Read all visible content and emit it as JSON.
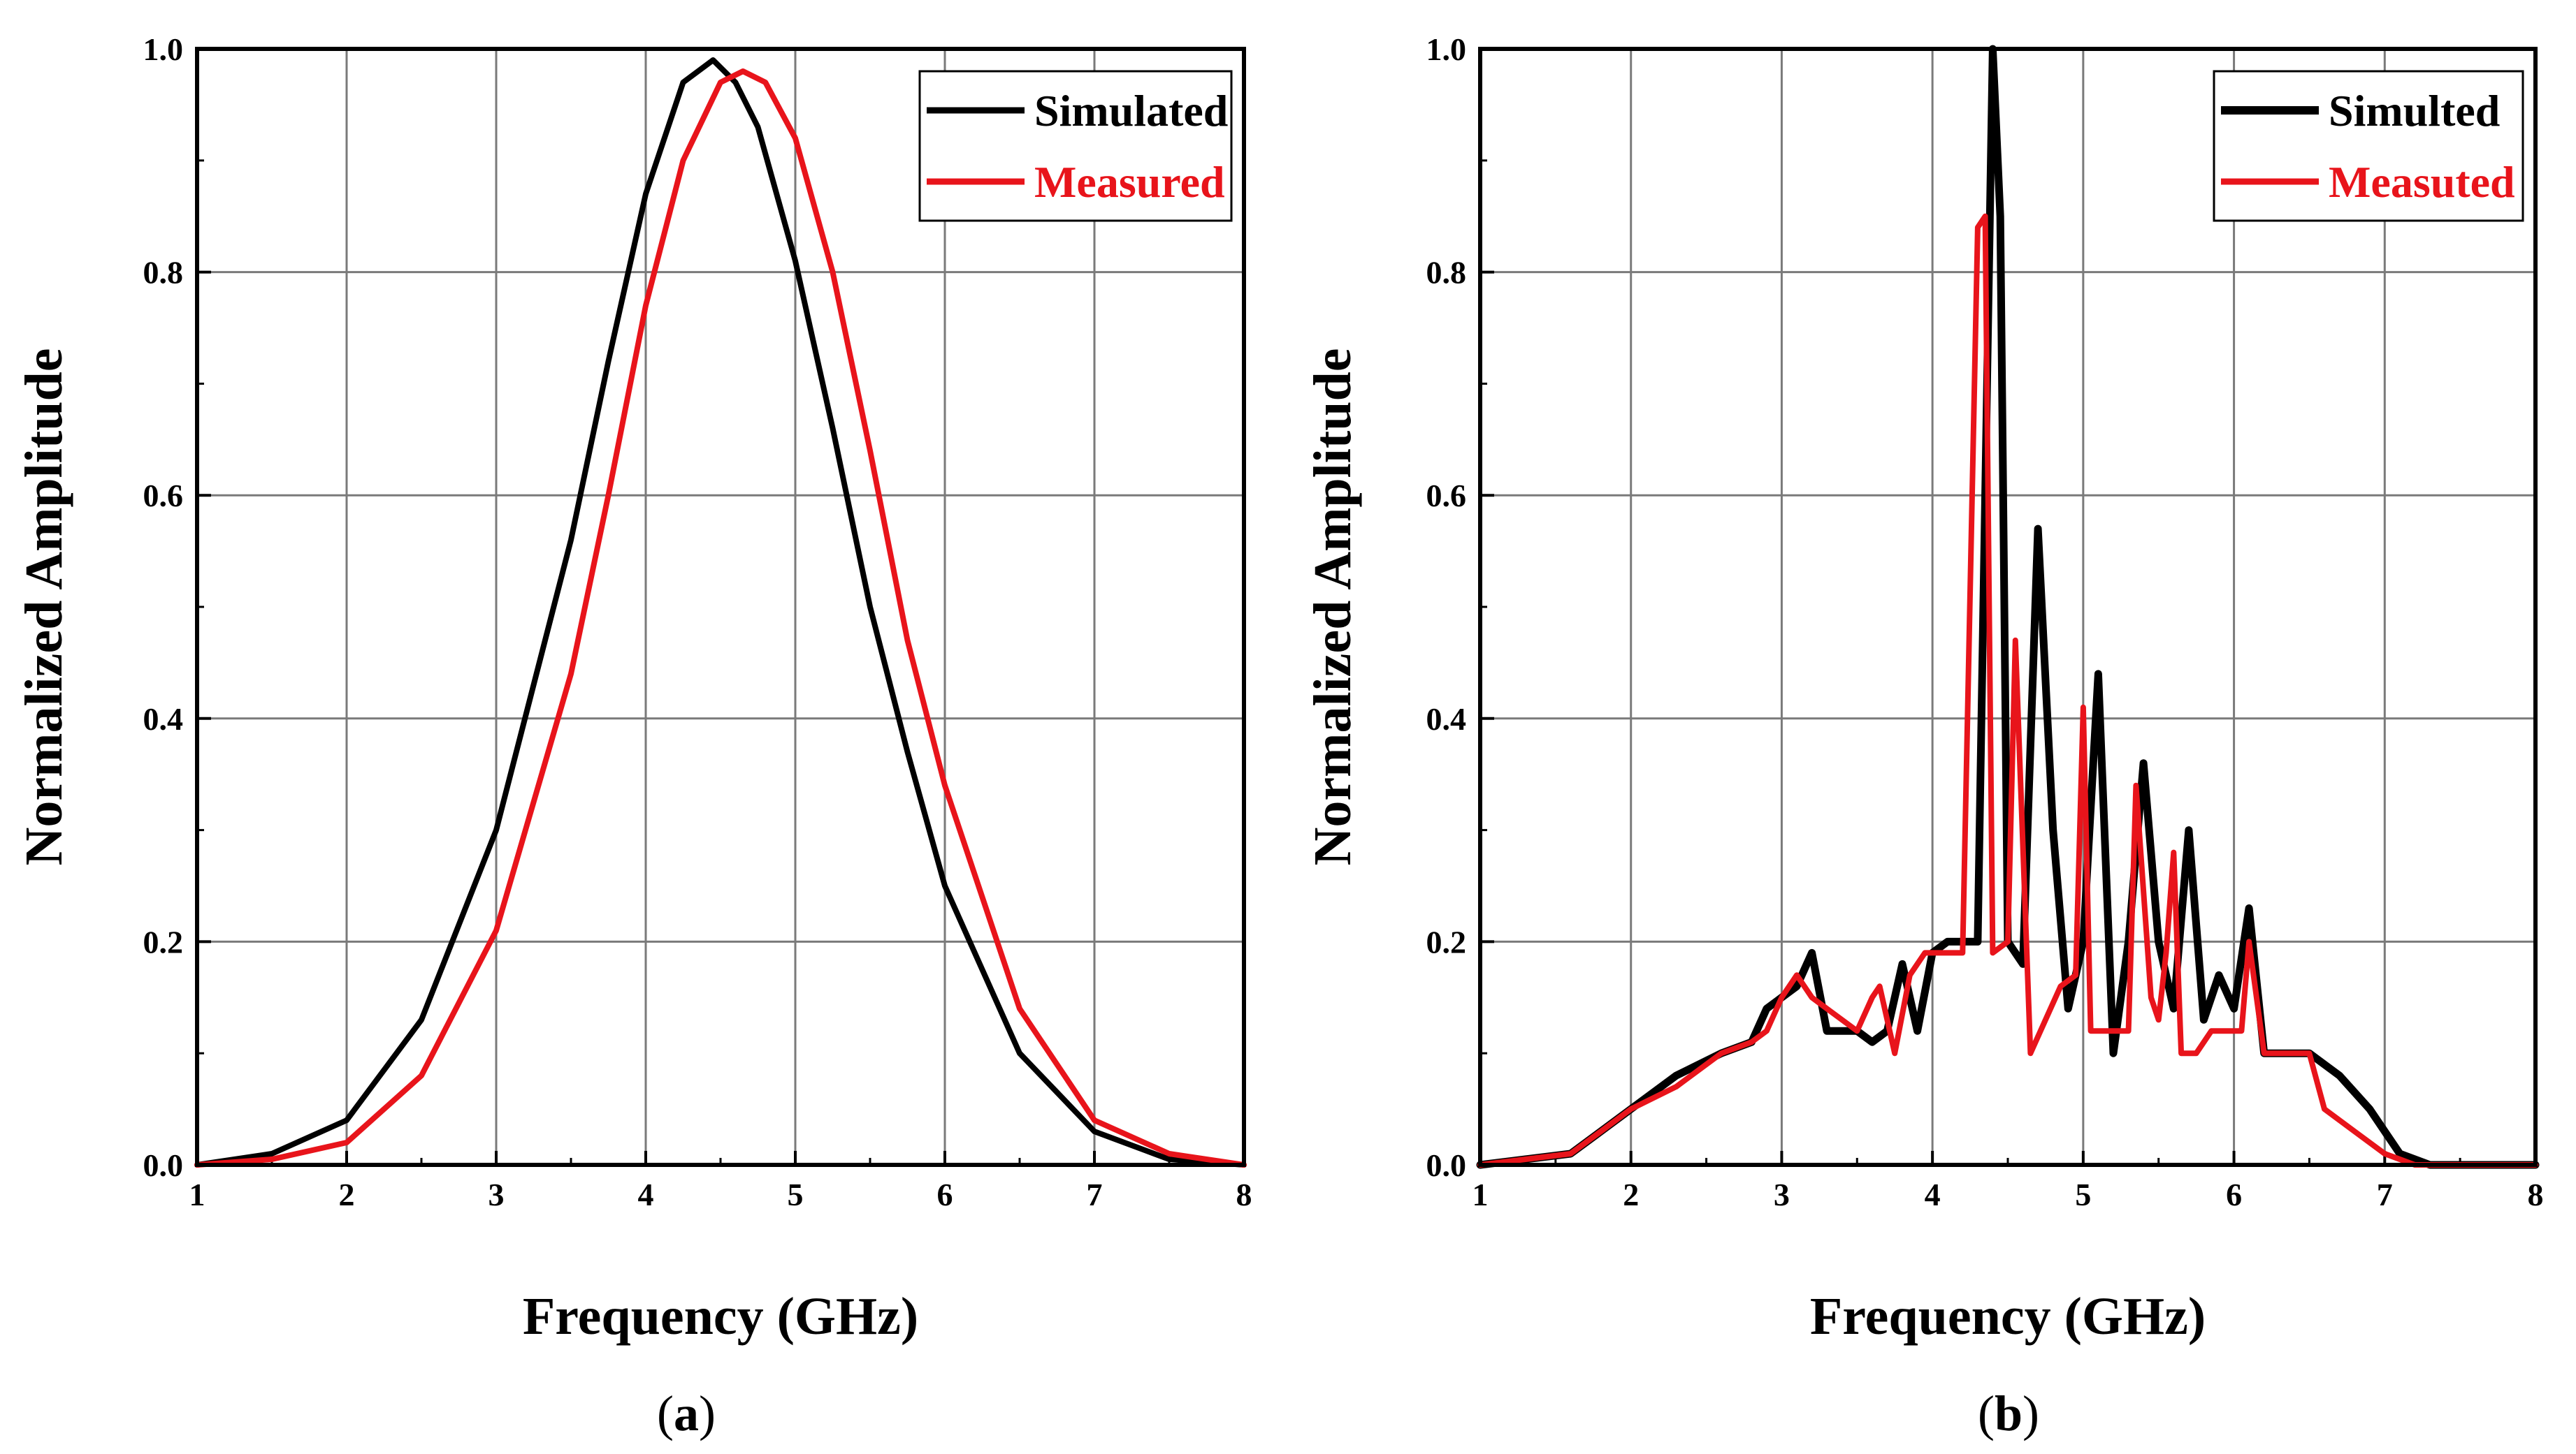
{
  "chart_data": [
    {
      "type": "line",
      "panel": "a",
      "caption": {
        "open": "(",
        "letter": "a",
        "close": ")"
      },
      "xlabel": "Frequency (GHz)",
      "ylabel": "Normalized Amplitude",
      "xlim": [
        1,
        8
      ],
      "ylim": [
        0,
        1.0
      ],
      "x_ticks": [
        1,
        2,
        3,
        4,
        5,
        6,
        7,
        8
      ],
      "y_ticks": [
        "0.0",
        "0.2",
        "0.4",
        "0.6",
        "0.8",
        "1.0"
      ],
      "grid": true,
      "legend_position": "top-right",
      "series": [
        {
          "name": "Simulated",
          "color": "#000000",
          "x": [
            1.0,
            1.5,
            2.0,
            2.5,
            3.0,
            3.5,
            3.75,
            4.0,
            4.25,
            4.45,
            4.6,
            4.75,
            5.0,
            5.25,
            5.5,
            5.75,
            6.0,
            6.5,
            7.0,
            7.5,
            8.0
          ],
          "y": [
            0.0,
            0.01,
            0.04,
            0.13,
            0.3,
            0.56,
            0.72,
            0.87,
            0.97,
            0.99,
            0.97,
            0.93,
            0.81,
            0.66,
            0.5,
            0.37,
            0.25,
            0.1,
            0.03,
            0.005,
            0.0
          ]
        },
        {
          "name": "Measured",
          "color": "#e8141b",
          "x": [
            1.0,
            1.5,
            2.0,
            2.5,
            3.0,
            3.5,
            3.75,
            4.0,
            4.25,
            4.5,
            4.65,
            4.8,
            5.0,
            5.25,
            5.5,
            5.75,
            6.0,
            6.5,
            7.0,
            7.5,
            8.0
          ],
          "y": [
            0.0,
            0.005,
            0.02,
            0.08,
            0.21,
            0.44,
            0.6,
            0.77,
            0.9,
            0.97,
            0.98,
            0.97,
            0.92,
            0.8,
            0.64,
            0.47,
            0.34,
            0.14,
            0.04,
            0.01,
            0.0
          ]
        }
      ]
    },
    {
      "type": "line",
      "panel": "b",
      "caption": {
        "open": "(",
        "letter": "b",
        "close": ")"
      },
      "xlabel": "Frequency (GHz)",
      "ylabel": "Normalized Amplitude",
      "xlim": [
        1,
        8
      ],
      "ylim": [
        0,
        1.0
      ],
      "x_ticks": [
        1,
        2,
        3,
        4,
        5,
        6,
        7,
        8
      ],
      "y_ticks": [
        "0.0",
        "0.2",
        "0.4",
        "0.6",
        "0.8",
        "1.0"
      ],
      "grid": true,
      "legend_position": "top-right",
      "series": [
        {
          "name": "Simulted",
          "color": "#000000",
          "x": [
            1.0,
            1.3,
            1.6,
            1.8,
            2.0,
            2.3,
            2.6,
            2.8,
            2.9,
            3.0,
            3.1,
            3.2,
            3.3,
            3.4,
            3.5,
            3.6,
            3.7,
            3.8,
            3.9,
            4.0,
            4.1,
            4.2,
            4.3,
            4.35,
            4.4,
            4.45,
            4.5,
            4.6,
            4.7,
            4.8,
            4.9,
            5.0,
            5.1,
            5.2,
            5.3,
            5.4,
            5.5,
            5.6,
            5.7,
            5.8,
            5.9,
            6.0,
            6.1,
            6.2,
            6.5,
            6.7,
            6.9,
            7.1,
            7.3,
            8.0
          ],
          "y": [
            0.0,
            0.005,
            0.01,
            0.03,
            0.05,
            0.08,
            0.1,
            0.11,
            0.14,
            0.15,
            0.16,
            0.19,
            0.12,
            0.12,
            0.12,
            0.11,
            0.12,
            0.18,
            0.12,
            0.19,
            0.2,
            0.2,
            0.2,
            0.6,
            1.0,
            0.85,
            0.2,
            0.18,
            0.57,
            0.3,
            0.14,
            0.2,
            0.44,
            0.1,
            0.2,
            0.36,
            0.2,
            0.14,
            0.3,
            0.13,
            0.17,
            0.14,
            0.23,
            0.1,
            0.1,
            0.08,
            0.05,
            0.01,
            0.0,
            0.0
          ]
        },
        {
          "name": "Measuted",
          "color": "#e8141b",
          "x": [
            1.0,
            1.3,
            1.6,
            1.8,
            2.0,
            2.3,
            2.6,
            2.8,
            2.9,
            3.0,
            3.1,
            3.2,
            3.3,
            3.5,
            3.6,
            3.65,
            3.75,
            3.85,
            3.95,
            4.1,
            4.2,
            4.3,
            4.35,
            4.4,
            4.5,
            4.55,
            4.65,
            4.75,
            4.85,
            4.95,
            5.0,
            5.05,
            5.1,
            5.2,
            5.3,
            5.35,
            5.45,
            5.5,
            5.55,
            5.6,
            5.65,
            5.75,
            5.85,
            5.95,
            6.05,
            6.1,
            6.2,
            6.5,
            6.6,
            6.8,
            7.0,
            7.2,
            8.0
          ],
          "y": [
            0.0,
            0.005,
            0.01,
            0.03,
            0.05,
            0.07,
            0.1,
            0.11,
            0.12,
            0.15,
            0.17,
            0.15,
            0.14,
            0.12,
            0.15,
            0.16,
            0.1,
            0.17,
            0.19,
            0.19,
            0.19,
            0.84,
            0.85,
            0.19,
            0.2,
            0.47,
            0.1,
            0.13,
            0.16,
            0.17,
            0.41,
            0.12,
            0.12,
            0.12,
            0.12,
            0.34,
            0.15,
            0.13,
            0.19,
            0.28,
            0.1,
            0.1,
            0.12,
            0.12,
            0.12,
            0.2,
            0.1,
            0.1,
            0.05,
            0.03,
            0.01,
            0.0,
            0.0
          ]
        }
      ]
    }
  ]
}
